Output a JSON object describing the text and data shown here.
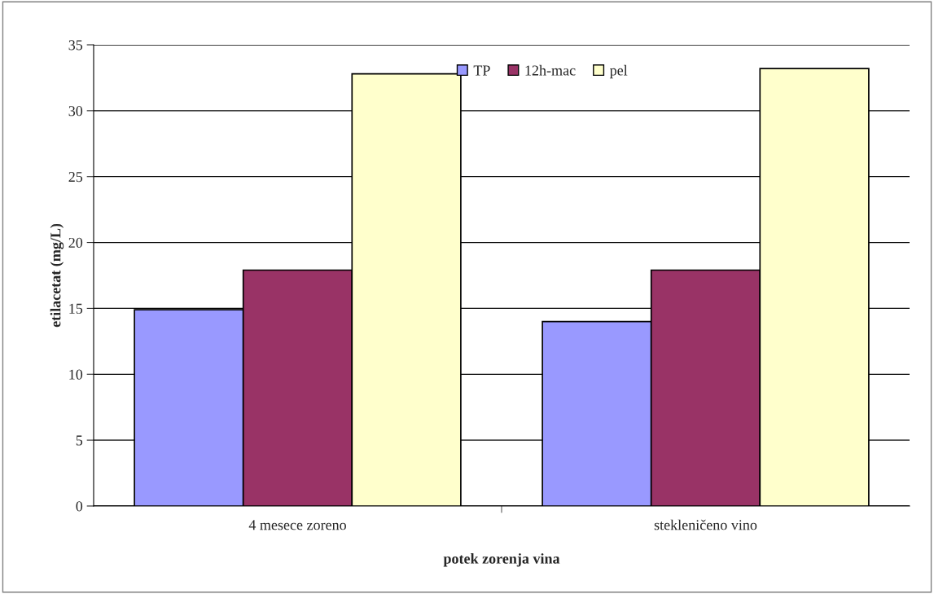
{
  "chart_data": {
    "type": "bar",
    "xlabel": "potek zorenja vina",
    "ylabel": "etilacetat (mg/L)",
    "categories": [
      "4 mesece zoreno",
      "stekleničeno vino"
    ],
    "series": [
      {
        "name": "TP",
        "color": "#9999ff",
        "values": [
          14.9,
          14.0
        ]
      },
      {
        "name": "12h-mac",
        "color": "#993366",
        "values": [
          17.9,
          17.9
        ]
      },
      {
        "name": "pel",
        "color": "#ffffcc",
        "values": [
          32.8,
          33.2
        ]
      }
    ],
    "ylim": [
      0,
      35
    ],
    "yticks": [
      0,
      5,
      10,
      15,
      20,
      25,
      30,
      35
    ],
    "grid": "y",
    "legend": "top"
  }
}
